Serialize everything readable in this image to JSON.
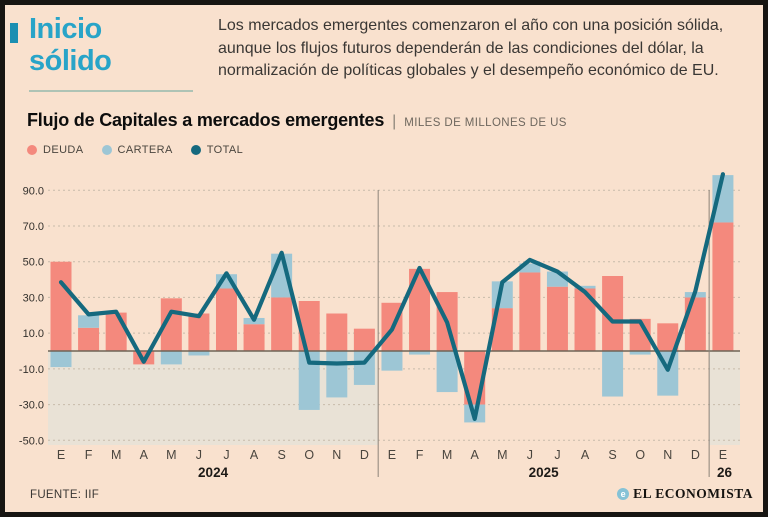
{
  "header": {
    "title_line1": "Inicio",
    "title_line2": "sólido",
    "description_lines": [
      "Los mercados emergentes comenzaron el año con una posición sólida,",
      "aunque los flujos futuros dependerán de las condiciones del dólar, la",
      "normalización de políticas globales y el desempeño económico de EU."
    ]
  },
  "chart": {
    "title": "Flujo de Capitales a mercados emergentes",
    "separator": "|",
    "subtitle": "MILES DE MILLONES DE US",
    "legend": [
      {
        "label": "DEUDA",
        "color": "#F4897D"
      },
      {
        "label": "CARTERA",
        "color": "#9DC6D5"
      },
      {
        "label": "TOTAL",
        "color": "#15697E"
      }
    ]
  },
  "chart_data": {
    "type": "bar",
    "subtype": "stacked-bars-with-line",
    "categories": [
      "E",
      "F",
      "M",
      "A",
      "M",
      "J",
      "J",
      "A",
      "S",
      "O",
      "N",
      "D",
      "E",
      "F",
      "M",
      "A",
      "M",
      "J",
      "J",
      "A",
      "S",
      "O",
      "N",
      "D",
      "E"
    ],
    "years": [
      {
        "label": "2024",
        "start": 0,
        "end": 11,
        "shaded": true
      },
      {
        "label": "2025",
        "start": 12,
        "end": 23,
        "shaded": false
      },
      {
        "label": "26",
        "start": 24,
        "end": 24,
        "shaded": true
      }
    ],
    "series": [
      {
        "name": "DEUDA",
        "type": "bar",
        "color": "#F4897D",
        "values": [
          50,
          13,
          21.5,
          -7.5,
          29.5,
          21,
          35,
          15,
          30,
          28,
          21,
          12.5,
          27,
          46,
          33,
          -30,
          24,
          44,
          36,
          35,
          42,
          18,
          15.5,
          30,
          72
        ]
      },
      {
        "name": "CARTERA",
        "type": "bar",
        "color": "#9DC6D5",
        "values": [
          -9,
          7,
          0,
          0,
          -7.5,
          -2.5,
          8,
          3.5,
          24.5,
          -33,
          -26,
          -19,
          -11,
          -2,
          -23,
          -10,
          15,
          5,
          8.5,
          1.5,
          -25.5,
          -2,
          -25,
          3,
          26.5
        ]
      },
      {
        "name": "TOTAL",
        "type": "line",
        "color": "#15697E",
        "values": [
          38.5,
          20.5,
          22,
          -6,
          22,
          19.5,
          43.5,
          17.5,
          55,
          -6.5,
          -7,
          -6.5,
          12,
          46.5,
          16,
          -38,
          38.5,
          51,
          44.5,
          33,
          16.5,
          16.5,
          -10.5,
          33.5,
          99
        ]
      }
    ],
    "ylim": [
      -50,
      100
    ],
    "yticks": [
      {
        "v": 90,
        "label": "90.0"
      },
      {
        "v": 70,
        "label": "70.0"
      },
      {
        "v": 50,
        "label": "50.0"
      },
      {
        "v": 30,
        "label": "30.0"
      },
      {
        "v": 10,
        "label": "10.0"
      },
      {
        "v": -10,
        "label": "-10.0"
      },
      {
        "v": -30,
        "label": "-30.0"
      },
      {
        "v": -50,
        "label": "-50.0"
      }
    ],
    "grid": "dashed-horizontal",
    "legend_position": "top-left",
    "colors": {
      "band": "#E9E2D6",
      "grid": "#C7BBAA",
      "zero_line": "#6F6457",
      "divider": "#8D847A",
      "tick_text": "#33302C",
      "month_text": "#4A453E",
      "year_text": "#1D1A17"
    }
  },
  "footer": {
    "source": "FUENTE: IIF",
    "brand": "EL ECONOMISTA",
    "brand_icon_glyph": "e"
  }
}
